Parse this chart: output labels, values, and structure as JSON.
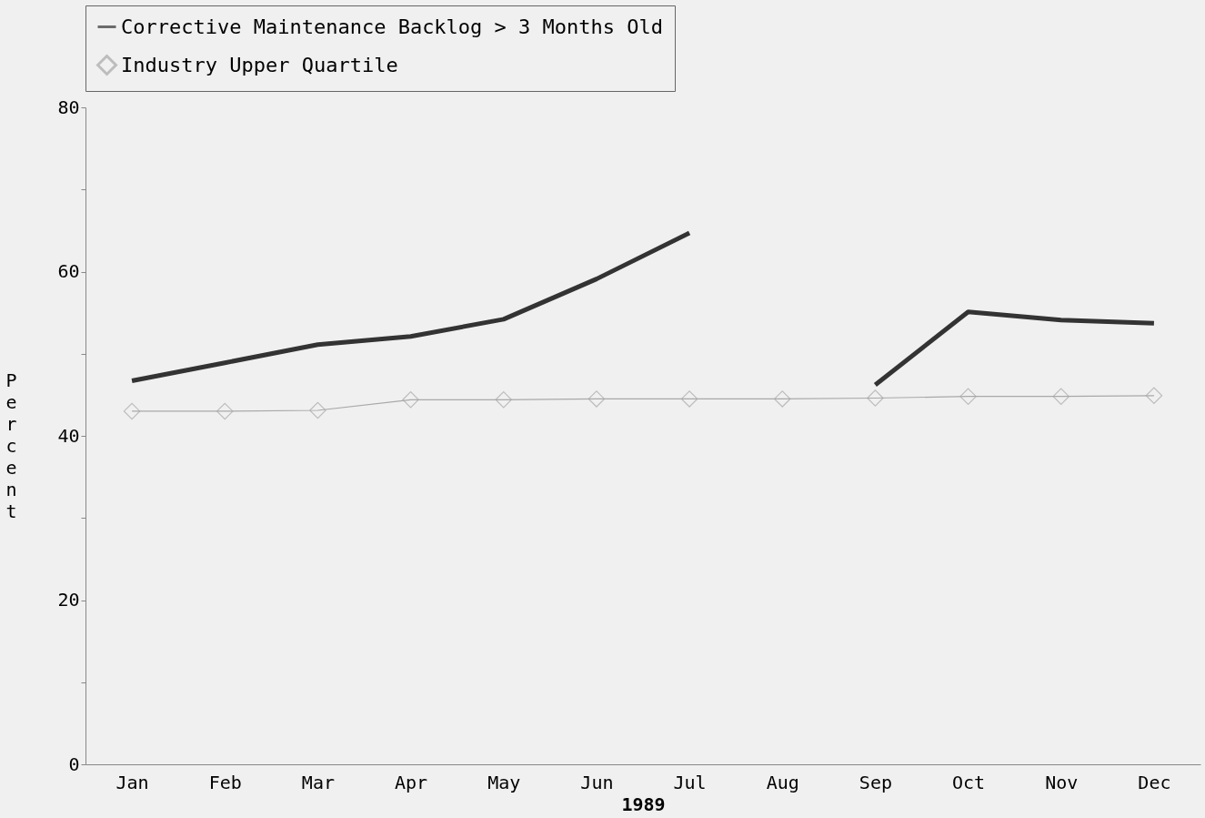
{
  "chart_data": {
    "type": "line",
    "xlabel": "1989",
    "ylabel": "Percent",
    "categories": [
      "Jan",
      "Feb",
      "Mar",
      "Apr",
      "May",
      "Jun",
      "Jul",
      "Aug",
      "Sep",
      "Oct",
      "Nov",
      "Dec"
    ],
    "series": [
      {
        "name": "Corrective Maintenance Backlog > 3 Months Old",
        "color": "#333333",
        "marker": "none",
        "values": [
          46.7,
          48.9,
          51.1,
          52.1,
          54.2,
          59.1,
          64.7,
          null,
          46.2,
          55.1,
          54.1,
          53.7
        ]
      },
      {
        "name": "Industry Upper Quartile",
        "color": "#a8a8a8",
        "marker": "diamond",
        "values": [
          43.0,
          43.0,
          43.1,
          44.4,
          44.4,
          44.5,
          44.5,
          44.5,
          44.6,
          44.8,
          44.8,
          44.9
        ]
      }
    ],
    "ylim": [
      0,
      80
    ],
    "yticks": [
      0,
      {
        "value": 10,
        "label": null
      },
      20,
      {
        "value": 30,
        "label": null
      },
      40,
      {
        "value": 50,
        "label": null
      },
      60,
      {
        "value": 70,
        "label": null
      },
      80
    ],
    "grid": false,
    "legend": "top",
    "line_style": "solid"
  }
}
